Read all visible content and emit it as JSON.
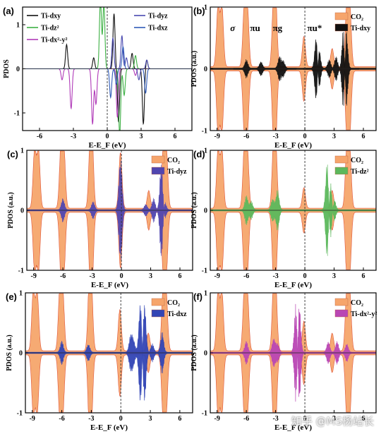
{
  "watermark": "知乎 @MS杨站长",
  "chart_data": [
    {
      "type": "line",
      "panel_label": "(a)",
      "xlabel": "E-E_F (eV)",
      "ylabel": "PDOS",
      "xlim": [
        -7.5,
        7.5
      ],
      "ylim": [
        -1.4,
        1.4
      ],
      "x_ticks": [
        -6,
        -3,
        0,
        3,
        6
      ],
      "y_ticks": [
        -1,
        0,
        1
      ],
      "legend": [
        {
          "name": "Ti-dxy",
          "color": "#111111"
        },
        {
          "name": "Ti-dz²",
          "color": "#3cb043"
        },
        {
          "name": "Ti-dx²-y²",
          "color": "#b03ab8"
        },
        {
          "name": "Ti-dyz",
          "color": "#4a4ab0"
        },
        {
          "name": "Ti-dxz",
          "color": "#2f5bb7"
        }
      ],
      "series": [
        {
          "name": "Ti-dxy",
          "color": "#111111",
          "peaks": [
            [
              -3.6,
              0.55
            ],
            [
              -1.2,
              0.25
            ],
            [
              0.6,
              1.25
            ],
            [
              1.0,
              -1.2
            ],
            [
              2.2,
              0.35
            ],
            [
              3.2,
              -1.25
            ],
            [
              3.5,
              0.2
            ]
          ]
        },
        {
          "name": "Ti-dz²",
          "color": "#3cb043",
          "peaks": [
            [
              -0.6,
              1.6
            ],
            [
              -0.3,
              1.5
            ],
            [
              1.1,
              -1.5
            ],
            [
              1.5,
              -0.6
            ],
            [
              2.5,
              0.3
            ]
          ]
        },
        {
          "name": "Ti-dx²-y²",
          "color": "#b03ab8",
          "peaks": [
            [
              -4.0,
              -0.25
            ],
            [
              -3.2,
              -0.9
            ],
            [
              -1.3,
              -1.25
            ],
            [
              -1.0,
              -0.8
            ],
            [
              0.9,
              -1.1
            ],
            [
              2.5,
              -0.15
            ]
          ]
        },
        {
          "name": "Ti-dyz",
          "color": "#4a4ab0",
          "peaks": [
            [
              0.5,
              0.7
            ],
            [
              1.3,
              0.75
            ],
            [
              1.7,
              0.25
            ],
            [
              2.8,
              -0.25
            ],
            [
              3.5,
              0.2
            ]
          ]
        },
        {
          "name": "Ti-dxz",
          "color": "#2f5bb7",
          "peaks": [
            [
              0.3,
              -0.65
            ],
            [
              0.8,
              -0.35
            ],
            [
              1.4,
              0.5
            ],
            [
              3.4,
              -0.55
            ]
          ]
        }
      ]
    },
    {
      "type": "area",
      "panel_label": "(b)",
      "xlabel": "E-E_F (eV)",
      "ylabel": "PDOS (a.u.)",
      "xlim": [
        -9.7,
        7.3
      ],
      "ylim": [
        -1,
        1
      ],
      "x_ticks": [
        -9,
        -6,
        -3,
        0,
        3,
        6
      ],
      "orbital_labels": [
        "σ",
        "πu",
        "πg",
        "πu*"
      ],
      "orbital_positions": [
        -7.4,
        -5.1,
        -2.8,
        1.0
      ],
      "legend": [
        {
          "name": "CO₂",
          "color": "#f6a56c"
        },
        {
          "name": "Ti-dxy",
          "color": "#111111"
        }
      ],
      "series": [
        {
          "name": "CO₂",
          "color": "#f6a56c",
          "peaks": [
            [
              -8.9,
              1.0
            ],
            [
              -8.5,
              0.98
            ],
            [
              -6.2,
              1.0
            ],
            [
              -5.9,
              0.96
            ],
            [
              -3.2,
              1.0
            ],
            [
              -3.0,
              0.98
            ],
            [
              -0.1,
              0.5
            ],
            [
              2.8,
              0.3
            ],
            [
              4.3,
              1.0
            ],
            [
              4.6,
              0.98
            ]
          ]
        },
        {
          "name": "Ti-dxy",
          "color": "#111111",
          "peaks": [
            [
              -6.0,
              0.15
            ],
            [
              -4.5,
              0.12
            ],
            [
              -2.6,
              0.2
            ],
            [
              -2.2,
              0.12
            ],
            [
              1.2,
              0.75
            ],
            [
              1.4,
              -0.55
            ],
            [
              2.5,
              0.15
            ],
            [
              3.2,
              -0.2
            ],
            [
              4.0,
              0.95
            ],
            [
              4.2,
              -0.95
            ]
          ]
        }
      ]
    },
    {
      "type": "area",
      "panel_label": "(c)",
      "xlabel": "E-E_F (eV)",
      "ylabel": "PDOS (a.u.)",
      "xlim": [
        -9.7,
        7.3
      ],
      "ylim": [
        -1,
        1
      ],
      "x_ticks": [
        -9,
        -6,
        -3,
        0,
        3,
        6
      ],
      "legend": [
        {
          "name": "CO₂",
          "color": "#f6a56c"
        },
        {
          "name": "Ti-dyz",
          "color": "#5046b0"
        }
      ],
      "series": [
        {
          "name": "CO₂",
          "color": "#f6a56c",
          "peaks": [
            [
              -8.9,
              1.0
            ],
            [
              -8.5,
              0.98
            ],
            [
              -6.2,
              1.0
            ],
            [
              -5.9,
              0.96
            ],
            [
              -3.2,
              1.0
            ],
            [
              -3.0,
              0.98
            ],
            [
              -0.1,
              0.95
            ],
            [
              2.8,
              0.3
            ],
            [
              4.3,
              1.0
            ],
            [
              4.6,
              0.98
            ]
          ]
        },
        {
          "name": "Ti-dyz",
          "color": "#5046b0",
          "peaks": [
            [
              -6.0,
              0.2
            ],
            [
              -2.9,
              0.15
            ],
            [
              -0.1,
              0.9
            ],
            [
              2.5,
              0.1
            ],
            [
              3.3,
              0.2
            ],
            [
              4.1,
              -0.85
            ],
            [
              4.4,
              0.2
            ]
          ]
        }
      ]
    },
    {
      "type": "area",
      "panel_label": "(d)",
      "xlabel": "E-E_F (eV)",
      "ylabel": "PDOS (a.u.)",
      "xlim": [
        -9.7,
        7.3
      ],
      "ylim": [
        -1,
        1
      ],
      "x_ticks": [
        -9,
        -6,
        -3,
        0,
        3,
        6
      ],
      "legend": [
        {
          "name": "CO₂",
          "color": "#f6a56c"
        },
        {
          "name": "Ti-dz²",
          "color": "#5cb85c"
        }
      ],
      "series": [
        {
          "name": "CO₂",
          "color": "#f6a56c",
          "peaks": [
            [
              -8.9,
              1.0
            ],
            [
              -8.5,
              0.98
            ],
            [
              -6.2,
              1.0
            ],
            [
              -5.9,
              0.96
            ],
            [
              -3.2,
              1.0
            ],
            [
              -3.0,
              0.98
            ],
            [
              -0.1,
              0.35
            ],
            [
              2.8,
              0.3
            ],
            [
              4.3,
              1.0
            ],
            [
              4.6,
              0.98
            ]
          ]
        },
        {
          "name": "Ti-dz²",
          "color": "#5cb85c",
          "peaks": [
            [
              -6.0,
              0.25
            ],
            [
              -5.5,
              0.15
            ],
            [
              -3.3,
              0.2
            ],
            [
              -2.8,
              0.35
            ],
            [
              2.3,
              0.95
            ],
            [
              2.6,
              -0.6
            ],
            [
              3.0,
              0.2
            ]
          ]
        }
      ]
    },
    {
      "type": "area",
      "panel_label": "(e)",
      "xlabel": "E-E_F (eV)",
      "ylabel": "PDOS (a.u.)",
      "xlim": [
        -9.7,
        7.3
      ],
      "ylim": [
        -1,
        1
      ],
      "x_ticks": [
        -9,
        -6,
        -3,
        0,
        3,
        6
      ],
      "legend": [
        {
          "name": "CO₂",
          "color": "#f6a56c"
        },
        {
          "name": "Ti-dxz",
          "color": "#3245b5"
        }
      ],
      "series": [
        {
          "name": "CO₂",
          "color": "#f6a56c",
          "peaks": [
            [
              -8.9,
              1.0
            ],
            [
              -8.5,
              0.98
            ],
            [
              -6.2,
              1.0
            ],
            [
              -5.9,
              0.96
            ],
            [
              -3.2,
              1.0
            ],
            [
              -3.0,
              0.98
            ],
            [
              -0.1,
              0.7
            ],
            [
              2.8,
              0.3
            ],
            [
              4.3,
              1.0
            ],
            [
              4.6,
              0.98
            ]
          ]
        },
        {
          "name": "Ti-dxz",
          "color": "#3245b5",
          "peaks": [
            [
              -6.0,
              0.2
            ],
            [
              -3.3,
              0.15
            ],
            [
              1.0,
              0.3
            ],
            [
              1.3,
              0.2
            ],
            [
              2.0,
              0.95
            ],
            [
              2.4,
              -0.95
            ],
            [
              3.2,
              0.15
            ],
            [
              4.2,
              0.35
            ]
          ]
        }
      ]
    },
    {
      "type": "area",
      "panel_label": "(f)",
      "xlabel": "E-E_F (eV)",
      "ylabel": "PDOS (a.u.)",
      "xlim": [
        -9.7,
        7.3
      ],
      "ylim": [
        -1,
        1
      ],
      "x_ticks": [
        -9,
        -6,
        -3,
        0,
        3,
        6
      ],
      "legend": [
        {
          "name": "CO₂",
          "color": "#f6a56c"
        },
        {
          "name": "Ti-dx²-y²",
          "color": "#b946b4"
        }
      ],
      "series": [
        {
          "name": "CO₂",
          "color": "#f6a56c",
          "peaks": [
            [
              -8.9,
              1.0
            ],
            [
              -8.5,
              0.98
            ],
            [
              -6.2,
              1.0
            ],
            [
              -5.9,
              0.96
            ],
            [
              -3.2,
              1.0
            ],
            [
              -3.0,
              0.98
            ],
            [
              -0.1,
              0.5
            ],
            [
              2.8,
              0.3
            ],
            [
              4.3,
              1.0
            ],
            [
              4.6,
              0.98
            ]
          ]
        },
        {
          "name": "Ti-dx²-y²",
          "color": "#b946b4",
          "peaks": [
            [
              -6.0,
              0.2
            ],
            [
              -3.2,
              0.25
            ],
            [
              -2.8,
              0.15
            ],
            [
              -0.9,
              0.95
            ],
            [
              -0.6,
              -0.95
            ],
            [
              2.4,
              0.2
            ],
            [
              3.3,
              0.2
            ],
            [
              4.3,
              0.15
            ]
          ]
        }
      ]
    }
  ]
}
